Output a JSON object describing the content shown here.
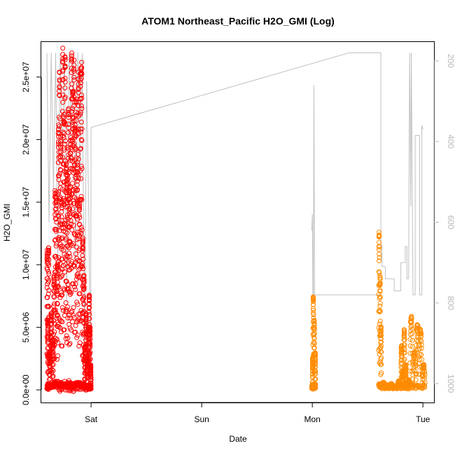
{
  "chart_data": {
    "type": "scatter",
    "title": "ATOM1 Northeast_Pacific H2O_GMI (Log)",
    "xlabel": "Date",
    "ylabel": "H2O_GMI",
    "x_unit": "days (Sat = 0)",
    "xlim": [
      -0.45,
      3.1
    ],
    "x_ticks": [
      {
        "value": 0,
        "label": "Sat"
      },
      {
        "value": 1,
        "label": "Sun"
      },
      {
        "value": 2,
        "label": "Mon"
      },
      {
        "value": 3,
        "label": "Tue"
      }
    ],
    "ylim": [
      0,
      28000000
    ],
    "y_ticks": [
      {
        "value": 0,
        "label": "0.0e+00"
      },
      {
        "value": 5000000,
        "label": "5.0e+06"
      },
      {
        "value": 10000000,
        "label": "1.0e+07"
      },
      {
        "value": 15000000,
        "label": "1.5e+07"
      },
      {
        "value": 20000000,
        "label": "2.0e+07"
      },
      {
        "value": 25000000,
        "label": "2.5e+07"
      }
    ],
    "y2_axis": {
      "color": "#b8b8b8",
      "inverted": true,
      "lim": [
        180,
        1045
      ],
      "ticks": [
        {
          "value": 200,
          "label": "200"
        },
        {
          "value": 400,
          "label": "400"
        },
        {
          "value": 600,
          "label": "600"
        },
        {
          "value": 800,
          "label": "800"
        },
        {
          "value": 1000,
          "label": "1000"
        }
      ]
    },
    "grid": false,
    "legend": "none",
    "series": [
      {
        "color": "#ff0000",
        "marker": "open-circle",
        "segments": [
          {
            "x_start": -0.4,
            "x_end": -0.38,
            "peaks": [
              11000000,
              5500000,
              11400000
            ],
            "base": 200000
          },
          {
            "x_start": -0.38,
            "x_end": -0.34,
            "peaks": [
              3000000,
              6000000,
              4000000
            ],
            "base": 200000
          },
          {
            "x_start": -0.34,
            "x_end": -0.3,
            "peaks": [
              9000000,
              16000000,
              15500000,
              10000000
            ],
            "base": 400000
          },
          {
            "x_start": -0.3,
            "x_end": -0.26,
            "peaks": [
              21000000,
              25200000,
              20000000,
              15000000
            ],
            "base": 300000
          },
          {
            "x_start": -0.26,
            "x_end": -0.22,
            "peaks": [
              26800000,
              22000000,
              26500000,
              18000000
            ],
            "base": 200000
          },
          {
            "x_start": -0.22,
            "x_end": -0.18,
            "peaks": [
              17000000,
              22500000,
              16000000,
              20000000
            ],
            "base": 300000
          },
          {
            "x_start": -0.18,
            "x_end": -0.14,
            "peaks": [
              26800000,
              24000000,
              26000000,
              21000000
            ],
            "base": 200000
          },
          {
            "x_start": -0.14,
            "x_end": -0.1,
            "peaks": [
              23000000,
              18000000,
              25000000,
              15000000
            ],
            "base": 300000
          },
          {
            "x_start": -0.1,
            "x_end": -0.06,
            "peaks": [
              25700000,
              25900000,
              12000000,
              9000000
            ],
            "base": 200000
          },
          {
            "x_start": -0.06,
            "x_end": -0.02,
            "peaks": [
              3500000,
              6000000,
              2500000,
              5000000
            ],
            "base": 100000
          },
          {
            "x_start": -0.02,
            "x_end": 0.0,
            "peaks": [
              7500000,
              5000000,
              2000000
            ],
            "base": 100000
          }
        ]
      },
      {
        "color": "#ff8c00",
        "marker": "open-circle",
        "segments": [
          {
            "x_start": 1.995,
            "x_end": 2.005,
            "peaks": [
              300000,
              2500000
            ],
            "base": 100000
          },
          {
            "x_start": 2.005,
            "x_end": 2.03,
            "peaks": [
              7400000,
              5500000,
              3000000
            ],
            "base": 200000
          },
          {
            "x_start": 2.6,
            "x_end": 2.625,
            "peaks": [
              12600000,
              9000000,
              5000000
            ],
            "base": 200000
          },
          {
            "x_start": 2.625,
            "x_end": 2.8,
            "peaks": [
              600000,
              400000,
              500000,
              300000,
              700000
            ],
            "base": 100000
          },
          {
            "x_start": 2.8,
            "x_end": 2.85,
            "peaks": [
              3500000,
              1500000,
              4800000,
              2000000
            ],
            "base": 200000
          },
          {
            "x_start": 2.85,
            "x_end": 2.88,
            "peaks": [
              600000,
              800000
            ],
            "base": 100000
          },
          {
            "x_start": 2.88,
            "x_end": 3.02,
            "peaks": [
              5800000,
              3000000,
              5200000,
              4800000,
              2000000
            ],
            "base": 200000
          }
        ]
      },
      {
        "color": "#c0c0c0",
        "role": "pressure trace (right axis)",
        "points": [
          [
            -0.4,
            180
          ],
          [
            -0.38,
            600
          ],
          [
            -0.36,
            180
          ],
          [
            -0.34,
            520
          ],
          [
            -0.32,
            180
          ],
          [
            -0.3,
            700
          ],
          [
            -0.28,
            180
          ],
          [
            -0.26,
            450
          ],
          [
            -0.24,
            180
          ],
          [
            -0.22,
            800
          ],
          [
            -0.2,
            180
          ],
          [
            -0.18,
            380
          ],
          [
            -0.16,
            180
          ],
          [
            -0.14,
            700
          ],
          [
            -0.12,
            180
          ],
          [
            -0.1,
            500
          ],
          [
            -0.08,
            180
          ],
          [
            -0.06,
            900
          ],
          [
            -0.04,
            250
          ],
          [
            -0.02,
            600
          ],
          [
            -0.005,
            1020
          ],
          [
            0.0,
            380
          ],
          [
            0.0,
            365
          ],
          [
            2.33,
            180
          ],
          [
            2.55,
            180
          ],
          [
            2.56,
            180
          ],
          [
            2.62,
            180
          ],
          [
            2.62,
            650
          ],
          [
            2.63,
            660
          ],
          [
            2.63,
            710
          ],
          [
            2.66,
            710
          ],
          [
            2.66,
            740
          ],
          [
            2.74,
            740
          ],
          [
            2.74,
            770
          ],
          [
            2.8,
            770
          ],
          [
            2.8,
            700
          ],
          [
            2.84,
            700
          ],
          [
            2.84,
            660
          ],
          [
            2.855,
            660
          ],
          [
            2.855,
            740
          ],
          [
            2.87,
            740
          ],
          [
            2.88,
            180
          ],
          [
            2.89,
            560
          ],
          [
            2.895,
            180
          ],
          [
            2.91,
            780
          ],
          [
            2.93,
            780
          ],
          [
            2.93,
            385
          ],
          [
            2.97,
            385
          ],
          [
            2.97,
            780
          ],
          [
            2.99,
            780
          ],
          [
            2.99,
            360
          ],
          [
            3.0,
            370
          ]
        ],
        "extra_segments": [
          {
            "points": [
              [
                1.995,
                780
              ],
              [
                2.62,
                780
              ]
            ]
          },
          {
            "points": [
              [
                1.995,
                620
              ],
              [
                2.0,
                580
              ],
              [
                2.005,
                780
              ]
            ]
          },
          {
            "points": [
              [
                2.01,
                780
              ],
              [
                2.015,
                260
              ],
              [
                2.02,
                780
              ]
            ]
          }
        ]
      }
    ]
  }
}
